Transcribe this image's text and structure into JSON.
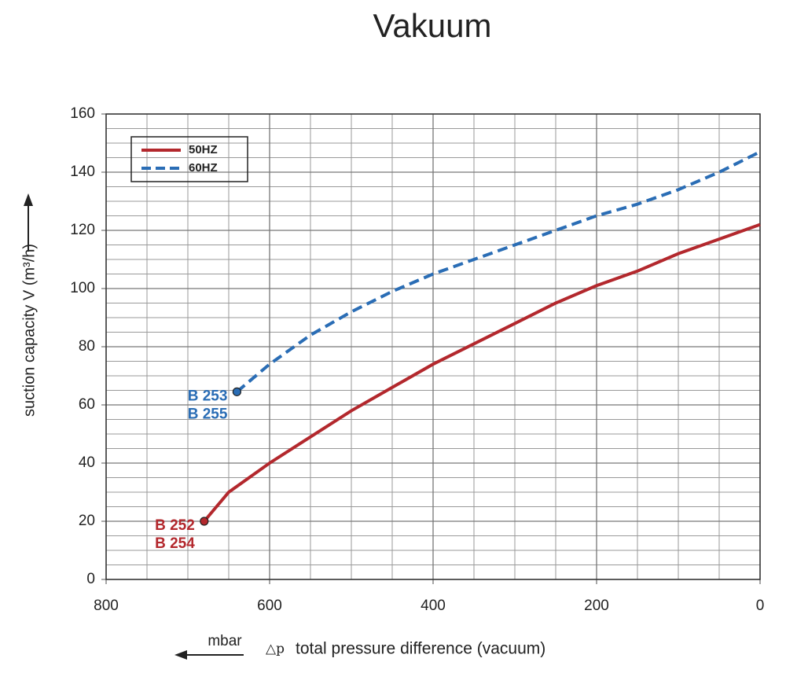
{
  "chart_data": {
    "type": "line",
    "title": "Vakuum",
    "y_label": "suction capacity V (m³/h)",
    "x_label": "total pressure difference (vacuum)",
    "x_symbol": "△p",
    "x_unit": "mbar",
    "xlim": [
      800,
      0
    ],
    "ylim": [
      0,
      160
    ],
    "xticks": [
      800,
      600,
      400,
      200,
      0
    ],
    "yticks": [
      0,
      20,
      40,
      60,
      80,
      100,
      120,
      140,
      160
    ],
    "xminor": [
      750,
      700,
      650,
      550,
      500,
      450,
      350,
      300,
      250,
      150,
      100,
      50
    ],
    "yminor": [
      5,
      10,
      15,
      25,
      30,
      35,
      45,
      50,
      55,
      65,
      70,
      75,
      85,
      90,
      95,
      105,
      110,
      115,
      125,
      130,
      135,
      145,
      150,
      155
    ],
    "grid": true,
    "legend": "upper left",
    "series": [
      {
        "name": "50HZ",
        "color": "#b3282d",
        "dash": false,
        "label": [
          "B 252",
          "B 254"
        ],
        "x": [
          680,
          650,
          600,
          550,
          500,
          450,
          400,
          350,
          300,
          250,
          200,
          150,
          100,
          50,
          0
        ],
        "values": [
          20,
          30,
          40,
          49,
          58,
          66,
          74,
          81,
          88,
          95,
          101,
          106,
          112,
          117,
          122
        ]
      },
      {
        "name": "60HZ",
        "color": "#2a6db5",
        "dash": true,
        "label": [
          "B 253",
          "B 255"
        ],
        "x": [
          640,
          600,
          550,
          500,
          450,
          400,
          350,
          300,
          250,
          200,
          150,
          100,
          50,
          0
        ],
        "values": [
          64.5,
          74,
          84,
          92,
          99,
          105,
          110,
          115,
          120,
          125,
          129,
          134,
          140,
          147
        ]
      }
    ]
  }
}
